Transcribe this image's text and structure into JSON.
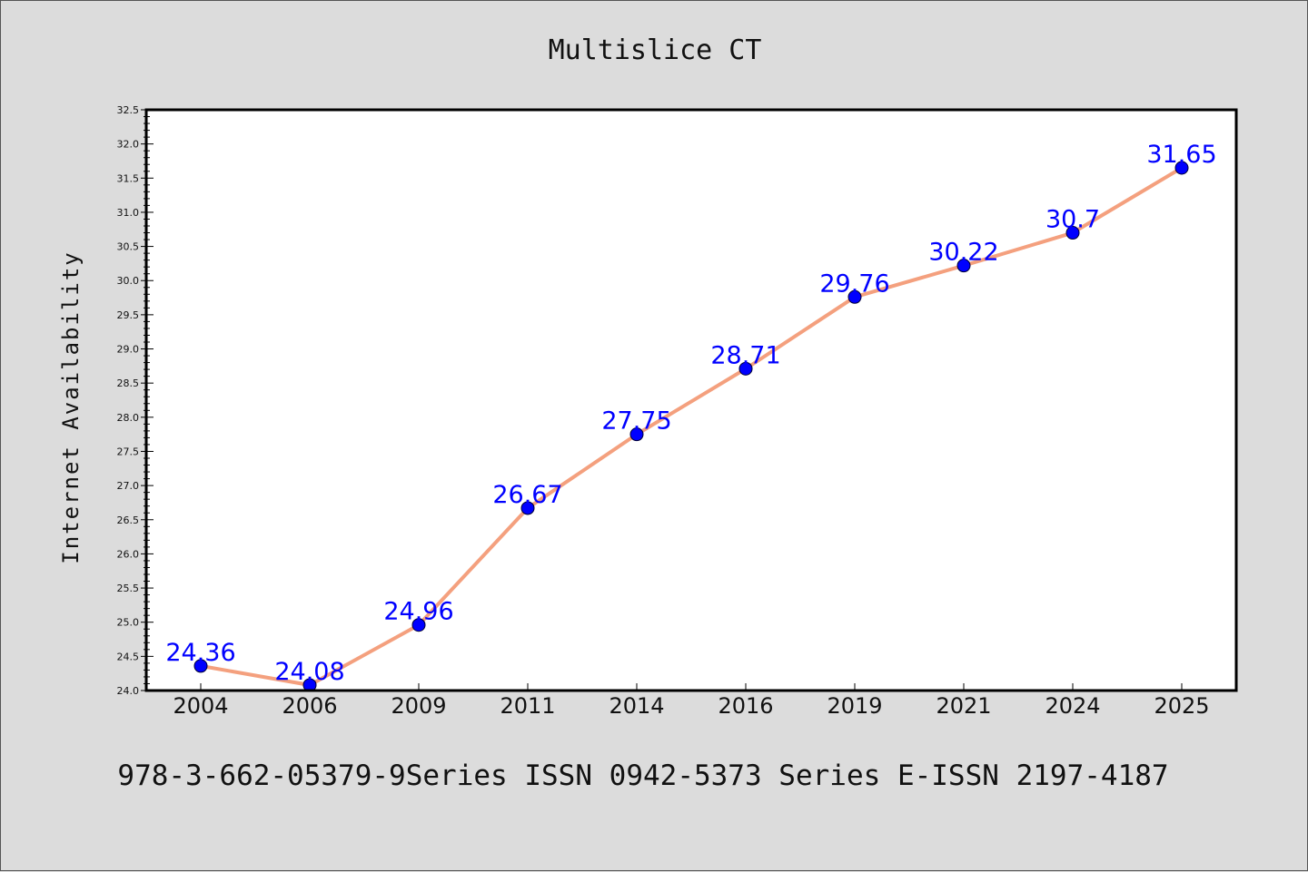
{
  "chart_data": {
    "type": "line",
    "title": "Multislice CT",
    "xlabel": "",
    "ylabel": "Internet Availability",
    "categories": [
      "2004",
      "2006",
      "2009",
      "2011",
      "2014",
      "2016",
      "2019",
      "2021",
      "2024",
      "2025"
    ],
    "series": [
      {
        "values": [
          24.36,
          24.08,
          24.96,
          26.67,
          27.75,
          28.71,
          29.76,
          30.22,
          30.7,
          31.65
        ],
        "labels": [
          "24.36",
          "24.08",
          "24.96",
          "26.67",
          "27.75",
          "28.71",
          "29.76",
          "30.22",
          "30.7",
          "31.65"
        ]
      }
    ],
    "ylim": [
      24.0,
      32.5
    ],
    "yticks": [
      "24.0",
      "24.5",
      "25.0",
      "25.5",
      "26.0",
      "26.5",
      "27.0",
      "27.5",
      "28.0",
      "28.5",
      "29.0",
      "29.5",
      "30.0",
      "30.5",
      "31.0",
      "31.5",
      "32.0",
      "32.5"
    ],
    "grid": false,
    "line_color": "#f4a07e",
    "marker_color": "#0000ff",
    "label_color": "#0000ff"
  },
  "footer": {
    "text": "978-3-662-05379-9Series ISSN 0942-5373 Series E-ISSN 2197-4187"
  }
}
